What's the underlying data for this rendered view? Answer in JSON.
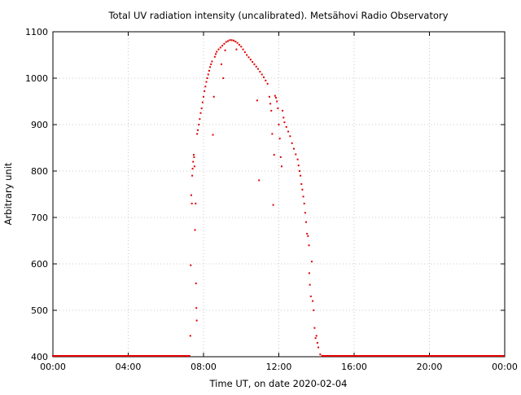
{
  "colors": {
    "series": "#e00000",
    "grid": "#c8c8c8",
    "axis": "#000000"
  },
  "chart_data": {
    "type": "scatter",
    "title": "Total UV radiation intensity (uncalibrated). Metsähovi Radio Observatory",
    "xlabel": "Time UT, on date 2020-02-04",
    "ylabel": "Arbitrary unit",
    "xlim_hours": [
      0,
      24
    ],
    "ylim": [
      400,
      1100
    ],
    "grid": true,
    "legend": "none",
    "x_ticks": [
      {
        "hours": 0,
        "label": "00:00"
      },
      {
        "hours": 4,
        "label": "04:00"
      },
      {
        "hours": 8,
        "label": "08:00"
      },
      {
        "hours": 12,
        "label": "12:00"
      },
      {
        "hours": 16,
        "label": "16:00"
      },
      {
        "hours": 20,
        "label": "20:00"
      },
      {
        "hours": 24,
        "label": "00:00"
      }
    ],
    "y_ticks": [
      400,
      500,
      600,
      700,
      800,
      900,
      1000,
      1100
    ],
    "baseline": {
      "from_hours": 0,
      "to_hours": 7.3,
      "value": 400
    },
    "baseline_after": {
      "from_hours": 14.35,
      "to_hours": 24,
      "value": 400
    },
    "series": [
      {
        "points": [
          [
            7.3,
            445
          ],
          [
            7.32,
            597
          ],
          [
            7.35,
            748
          ],
          [
            7.38,
            730
          ],
          [
            7.4,
            790
          ],
          [
            7.42,
            805
          ],
          [
            7.45,
            820
          ],
          [
            7.48,
            835
          ],
          [
            7.5,
            830
          ],
          [
            7.52,
            810
          ],
          [
            7.55,
            673
          ],
          [
            7.58,
            730
          ],
          [
            7.6,
            558
          ],
          [
            7.62,
            505
          ],
          [
            7.64,
            478
          ],
          [
            7.66,
            880
          ],
          [
            7.7,
            888
          ],
          [
            7.75,
            900
          ],
          [
            7.8,
            912
          ],
          [
            7.85,
            925
          ],
          [
            7.9,
            935
          ],
          [
            7.95,
            948
          ],
          [
            8.0,
            960
          ],
          [
            8.05,
            972
          ],
          [
            8.1,
            982
          ],
          [
            8.15,
            992
          ],
          [
            8.2,
            1000
          ],
          [
            8.25,
            1008
          ],
          [
            8.3,
            1016
          ],
          [
            8.35,
            1024
          ],
          [
            8.4,
            1030
          ],
          [
            8.45,
            1036
          ],
          [
            8.5,
            878
          ],
          [
            8.55,
            960
          ],
          [
            8.6,
            1046
          ],
          [
            8.65,
            1052
          ],
          [
            8.7,
            1057
          ],
          [
            8.8,
            1062
          ],
          [
            8.9,
            1066
          ],
          [
            8.95,
            1030
          ],
          [
            9.0,
            1070
          ],
          [
            9.05,
            1000
          ],
          [
            9.1,
            1074
          ],
          [
            9.15,
            1060
          ],
          [
            9.2,
            1078
          ],
          [
            9.3,
            1080
          ],
          [
            9.4,
            1082
          ],
          [
            9.5,
            1082
          ],
          [
            9.6,
            1081
          ],
          [
            9.7,
            1079
          ],
          [
            9.75,
            1062
          ],
          [
            9.8,
            1076
          ],
          [
            9.9,
            1072
          ],
          [
            10.0,
            1068
          ],
          [
            10.1,
            1062
          ],
          [
            10.2,
            1056
          ],
          [
            10.3,
            1050
          ],
          [
            10.4,
            1045
          ],
          [
            10.5,
            1040
          ],
          [
            10.6,
            1035
          ],
          [
            10.7,
            1030
          ],
          [
            10.8,
            1025
          ],
          [
            10.85,
            952
          ],
          [
            10.9,
            1020
          ],
          [
            10.95,
            780
          ],
          [
            11.0,
            1014
          ],
          [
            11.1,
            1008
          ],
          [
            11.2,
            1002
          ],
          [
            11.3,
            995
          ],
          [
            11.4,
            988
          ],
          [
            11.5,
            960
          ],
          [
            11.55,
            945
          ],
          [
            11.6,
            930
          ],
          [
            11.65,
            880
          ],
          [
            11.7,
            727
          ],
          [
            11.75,
            835
          ],
          [
            11.8,
            962
          ],
          [
            11.85,
            958
          ],
          [
            11.9,
            950
          ],
          [
            11.95,
            935
          ],
          [
            12.0,
            900
          ],
          [
            12.05,
            870
          ],
          [
            12.1,
            830
          ],
          [
            12.15,
            810
          ],
          [
            12.2,
            930
          ],
          [
            12.25,
            915
          ],
          [
            12.3,
            905
          ],
          [
            12.4,
            895
          ],
          [
            12.5,
            885
          ],
          [
            12.6,
            875
          ],
          [
            12.7,
            860
          ],
          [
            12.8,
            848
          ],
          [
            12.9,
            836
          ],
          [
            13.0,
            825
          ],
          [
            13.05,
            812
          ],
          [
            13.1,
            800
          ],
          [
            13.15,
            790
          ],
          [
            13.2,
            772
          ],
          [
            13.25,
            760
          ],
          [
            13.3,
            745
          ],
          [
            13.35,
            730
          ],
          [
            13.4,
            710
          ],
          [
            13.45,
            690
          ],
          [
            13.5,
            665
          ],
          [
            13.55,
            660
          ],
          [
            13.6,
            640
          ],
          [
            13.62,
            580
          ],
          [
            13.65,
            555
          ],
          [
            13.7,
            530
          ],
          [
            13.75,
            605
          ],
          [
            13.8,
            520
          ],
          [
            13.85,
            500
          ],
          [
            13.9,
            462
          ],
          [
            13.95,
            440
          ],
          [
            14.0,
            445
          ],
          [
            14.05,
            430
          ],
          [
            14.1,
            420
          ],
          [
            14.2,
            405
          ],
          [
            14.3,
            402
          ]
        ]
      }
    ]
  }
}
